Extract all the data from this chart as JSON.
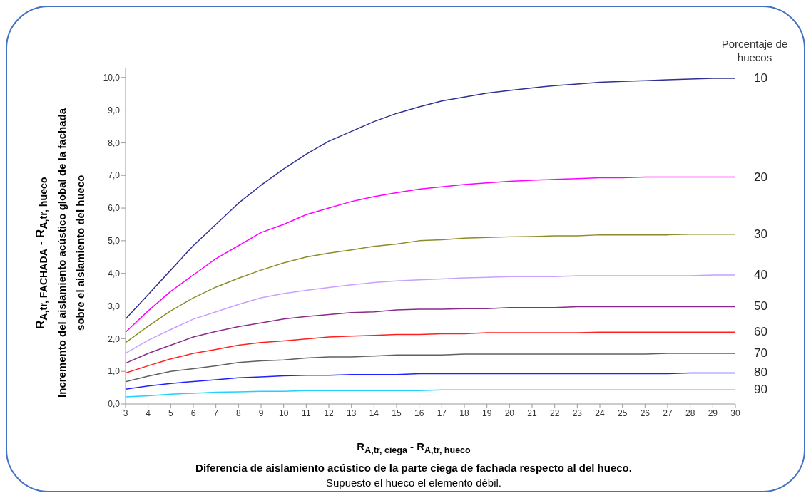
{
  "chart_data": {
    "type": "line",
    "xlabel": "R$_{A,tr, ciega}$ - R$_{A,tr, hueco}$",
    "ylabel": "R$_{A,tr, FACHADA}$ - R$_{A,tr, hueco}$\nIncremento del aislamiento acústico global de la fachada\nsobre el aislamiento del hueco",
    "legend_title": "Porcentaje de huecos",
    "annotations": [
      "Diferencia de aislamiento acústico de la parte ciega de fachada respecto al del hueco.",
      "Supuesto el hueco el elemento débil."
    ],
    "x": [
      3,
      4,
      5,
      6,
      7,
      8,
      9,
      10,
      11,
      12,
      13,
      14,
      15,
      16,
      17,
      18,
      19,
      20,
      21,
      22,
      23,
      24,
      25,
      26,
      27,
      28,
      29,
      30
    ],
    "series": [
      {
        "name": "10",
        "color": "#2e3192",
        "values": [
          2.6,
          3.35,
          4.1,
          4.85,
          5.5,
          6.15,
          6.7,
          7.2,
          7.65,
          8.05,
          8.35,
          8.65,
          8.9,
          9.1,
          9.28,
          9.4,
          9.52,
          9.6,
          9.68,
          9.75,
          9.8,
          9.85,
          9.88,
          9.9,
          9.93,
          9.95,
          9.97,
          9.97
        ]
      },
      {
        "name": "20",
        "color": "#ff00ff",
        "values": [
          2.2,
          2.85,
          3.45,
          3.95,
          4.45,
          4.85,
          5.25,
          5.5,
          5.8,
          6.0,
          6.2,
          6.35,
          6.47,
          6.58,
          6.65,
          6.72,
          6.77,
          6.82,
          6.85,
          6.88,
          6.9,
          6.93,
          6.93,
          6.95,
          6.95,
          6.95,
          6.95,
          6.95
        ]
      },
      {
        "name": "30",
        "color": "#8c8c28",
        "values": [
          1.88,
          2.38,
          2.85,
          3.25,
          3.58,
          3.85,
          4.1,
          4.32,
          4.5,
          4.62,
          4.72,
          4.83,
          4.9,
          5.0,
          5.03,
          5.08,
          5.1,
          5.12,
          5.13,
          5.15,
          5.15,
          5.18,
          5.18,
          5.18,
          5.18,
          5.2,
          5.2,
          5.2
        ]
      },
      {
        "name": "40",
        "color": "#c8a0ff",
        "values": [
          1.55,
          1.95,
          2.28,
          2.6,
          2.82,
          3.05,
          3.25,
          3.38,
          3.48,
          3.57,
          3.65,
          3.72,
          3.77,
          3.8,
          3.83,
          3.86,
          3.88,
          3.9,
          3.9,
          3.9,
          3.93,
          3.93,
          3.93,
          3.93,
          3.93,
          3.93,
          3.95,
          3.95
        ]
      },
      {
        "name": "50",
        "color": "#8b2a8b",
        "values": [
          1.25,
          1.55,
          1.8,
          2.05,
          2.22,
          2.37,
          2.48,
          2.6,
          2.68,
          2.74,
          2.8,
          2.82,
          2.88,
          2.9,
          2.9,
          2.92,
          2.92,
          2.95,
          2.95,
          2.95,
          2.98,
          2.98,
          2.98,
          2.98,
          2.98,
          2.98,
          2.98,
          2.98
        ]
      },
      {
        "name": "60",
        "color": "#ff2020",
        "values": [
          0.95,
          1.17,
          1.38,
          1.55,
          1.67,
          1.8,
          1.88,
          1.93,
          1.99,
          2.05,
          2.08,
          2.1,
          2.13,
          2.13,
          2.15,
          2.15,
          2.18,
          2.18,
          2.18,
          2.18,
          2.18,
          2.2,
          2.2,
          2.2,
          2.2,
          2.2,
          2.2,
          2.2
        ]
      },
      {
        "name": "70",
        "color": "#606060",
        "values": [
          0.68,
          0.85,
          1.0,
          1.08,
          1.17,
          1.27,
          1.32,
          1.35,
          1.41,
          1.44,
          1.44,
          1.47,
          1.5,
          1.5,
          1.5,
          1.53,
          1.53,
          1.53,
          1.53,
          1.53,
          1.53,
          1.53,
          1.53,
          1.53,
          1.55,
          1.55,
          1.55,
          1.55
        ]
      },
      {
        "name": "80",
        "color": "#2020ff",
        "values": [
          0.45,
          0.55,
          0.63,
          0.69,
          0.74,
          0.8,
          0.83,
          0.86,
          0.88,
          0.88,
          0.9,
          0.9,
          0.9,
          0.93,
          0.93,
          0.93,
          0.93,
          0.93,
          0.93,
          0.93,
          0.93,
          0.93,
          0.93,
          0.93,
          0.93,
          0.95,
          0.95,
          0.95
        ]
      },
      {
        "name": "90",
        "color": "#20d0ff",
        "values": [
          0.22,
          0.25,
          0.3,
          0.33,
          0.36,
          0.37,
          0.39,
          0.39,
          0.41,
          0.41,
          0.41,
          0.41,
          0.41,
          0.41,
          0.43,
          0.43,
          0.43,
          0.43,
          0.43,
          0.43,
          0.43,
          0.43,
          0.43,
          0.43,
          0.43,
          0.43,
          0.43,
          0.43
        ]
      }
    ],
    "xlim": [
      3,
      30
    ],
    "xticks": [
      3,
      4,
      5,
      6,
      7,
      8,
      9,
      10,
      11,
      12,
      13,
      14,
      15,
      16,
      17,
      18,
      19,
      20,
      21,
      22,
      23,
      24,
      25,
      26,
      27,
      28,
      29,
      30
    ],
    "ylim": [
      0,
      10.3
    ],
    "yticks": [
      {
        "value": 0,
        "label": "0,0"
      },
      {
        "value": 1,
        "label": "1,0"
      },
      {
        "value": 2,
        "label": "2,0"
      },
      {
        "value": 3,
        "label": "3,0"
      },
      {
        "value": 4,
        "label": "4,0"
      },
      {
        "value": 5,
        "label": "5,0"
      },
      {
        "value": 6,
        "label": "6,0"
      },
      {
        "value": 7,
        "label": "7,0"
      },
      {
        "value": 8,
        "label": "8,0"
      },
      {
        "value": 9,
        "label": "9,0"
      },
      {
        "value": 10,
        "label": "10,0"
      }
    ],
    "grid": false
  }
}
